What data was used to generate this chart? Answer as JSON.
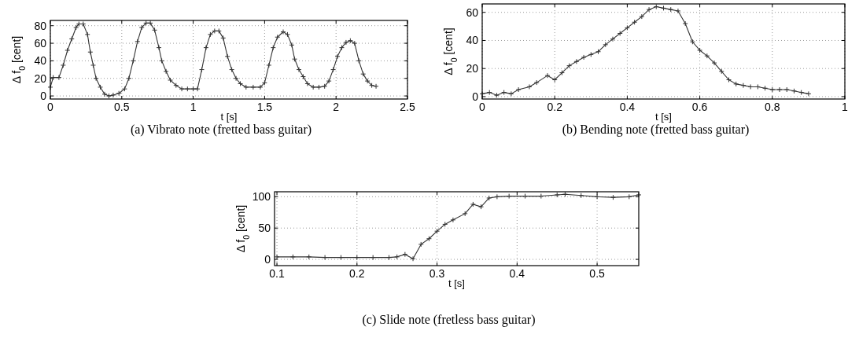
{
  "chart_data": [
    {
      "type": "line",
      "title": "(a)  Vibrato note (fretted bass guitar)",
      "xlabel": "t [s]",
      "ylabel": "Δ f$_{0}$ [cent]",
      "grid": true,
      "marker": "cross",
      "line_style": "solid",
      "xlim": [
        0,
        2.5
      ],
      "ylim": [
        -3.5,
        86
      ],
      "xticks": [
        0,
        0.5,
        1,
        1.5,
        2,
        2.5
      ],
      "yticks": [
        0,
        20,
        40,
        60,
        80
      ],
      "series": [
        {
          "color": "#333333",
          "x": [
            0,
            0.02,
            0.06,
            0.09,
            0.12,
            0.15,
            0.18,
            0.2,
            0.23,
            0.26,
            0.28,
            0.3,
            0.32,
            0.35,
            0.38,
            0.41,
            0.44,
            0.48,
            0.52,
            0.55,
            0.58,
            0.61,
            0.64,
            0.67,
            0.7,
            0.73,
            0.76,
            0.78,
            0.81,
            0.84,
            0.88,
            0.92,
            0.96,
            1.0,
            1.03,
            1.06,
            1.09,
            1.12,
            1.15,
            1.18,
            1.21,
            1.24,
            1.27,
            1.3,
            1.33,
            1.37,
            1.42,
            1.47,
            1.5,
            1.53,
            1.56,
            1.59,
            1.63,
            1.66,
            1.69,
            1.71,
            1.74,
            1.77,
            1.8,
            1.84,
            1.88,
            1.92,
            1.95,
            1.98,
            2.01,
            2.04,
            2.07,
            2.1,
            2.13,
            2.16,
            2.19,
            2.22,
            2.25,
            2.28
          ],
          "values": [
            10,
            21,
            21,
            35,
            52,
            65,
            78,
            82,
            82,
            70,
            50,
            35,
            20,
            10,
            2,
            0,
            1,
            3,
            8,
            20,
            40,
            62,
            78,
            83,
            83,
            75,
            55,
            40,
            28,
            18,
            12,
            8,
            8,
            8,
            8,
            30,
            55,
            70,
            74,
            74,
            66,
            45,
            30,
            20,
            14,
            10,
            10,
            10,
            15,
            35,
            55,
            67,
            73,
            70,
            58,
            42,
            30,
            22,
            14,
            10,
            10,
            11,
            17,
            30,
            45,
            55,
            61,
            63,
            60,
            40,
            25,
            17,
            12,
            11
          ]
        }
      ]
    },
    {
      "type": "line",
      "title": "(b)  Bending note (fretted bass guitar)",
      "xlabel": "t [s]",
      "ylabel": "Δ f$_{0}$ [cent]",
      "grid": true,
      "marker": "cross",
      "line_style": "solid",
      "xlim": [
        0,
        1
      ],
      "ylim": [
        -1.7,
        66
      ],
      "xticks": [
        0,
        0.2,
        0.4,
        0.6,
        0.8,
        1
      ],
      "yticks": [
        0,
        20,
        40,
        60
      ],
      "series": [
        {
          "color": "#333333",
          "x": [
            0,
            0.02,
            0.04,
            0.06,
            0.08,
            0.1,
            0.13,
            0.15,
            0.18,
            0.2,
            0.22,
            0.24,
            0.26,
            0.28,
            0.3,
            0.32,
            0.34,
            0.36,
            0.38,
            0.4,
            0.42,
            0.44,
            0.46,
            0.48,
            0.5,
            0.52,
            0.54,
            0.56,
            0.58,
            0.6,
            0.62,
            0.64,
            0.66,
            0.68,
            0.7,
            0.72,
            0.74,
            0.76,
            0.78,
            0.8,
            0.82,
            0.84,
            0.86,
            0.88,
            0.9
          ],
          "values": [
            2,
            3,
            1,
            3,
            2,
            5,
            7,
            10,
            15,
            12,
            17,
            22,
            25,
            28,
            30,
            32,
            37,
            41,
            45,
            49,
            53,
            57,
            62,
            64,
            63,
            62,
            61,
            52,
            39,
            33,
            29,
            24,
            18,
            12,
            9,
            8,
            7,
            7,
            6,
            5,
            5,
            5,
            4,
            3,
            2
          ]
        }
      ]
    },
    {
      "type": "line",
      "title": "(c)  Slide note (fretless bass guitar)",
      "xlabel": "t [s]",
      "ylabel": "Δ f$_{0}$ [cent]",
      "grid": true,
      "marker": "cross",
      "line_style": "solid",
      "xlim": [
        0.097,
        0.552
      ],
      "ylim": [
        -10,
        108
      ],
      "xticks": [
        0.1,
        0.2,
        0.3,
        0.4,
        0.5
      ],
      "yticks": [
        0,
        50,
        100
      ],
      "series": [
        {
          "color": "#333333",
          "x": [
            0.1,
            0.12,
            0.14,
            0.16,
            0.18,
            0.2,
            0.22,
            0.24,
            0.25,
            0.26,
            0.27,
            0.28,
            0.29,
            0.3,
            0.31,
            0.32,
            0.335,
            0.345,
            0.355,
            0.365,
            0.375,
            0.39,
            0.41,
            0.43,
            0.45,
            0.46,
            0.48,
            0.5,
            0.52,
            0.54,
            0.552
          ],
          "values": [
            4,
            4,
            4,
            3,
            3,
            3,
            3,
            3,
            4,
            8,
            1,
            24,
            33,
            45,
            56,
            63,
            73,
            88,
            84,
            98,
            100,
            101,
            101,
            101,
            103,
            104,
            102,
            100,
            99,
            100,
            103
          ]
        }
      ]
    }
  ]
}
